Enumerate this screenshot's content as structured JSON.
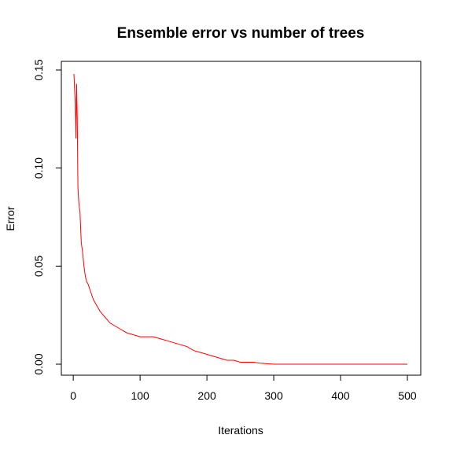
{
  "chart_data": {
    "type": "line",
    "title": "Ensemble error vs number of trees",
    "xlabel": "Iterations",
    "ylabel": "Error",
    "xlim": [
      1,
      500
    ],
    "ylim": [
      0,
      0.15
    ],
    "x_ticks": [
      0,
      100,
      200,
      300,
      400,
      500
    ],
    "y_ticks": [
      0.0,
      0.05,
      0.1,
      0.15
    ],
    "x_tick_labels": [
      "0",
      "100",
      "200",
      "300",
      "400",
      "500"
    ],
    "y_tick_labels": [
      "0.00",
      "0.05",
      "0.10",
      "0.15"
    ],
    "grid": false,
    "series": [
      {
        "color": "#ff0000",
        "x": [
          1,
          2,
          3,
          4,
          5,
          6,
          7,
          8,
          9,
          10,
          12,
          14,
          16,
          18,
          20,
          22,
          25,
          28,
          30,
          35,
          40,
          45,
          50,
          55,
          60,
          70,
          80,
          90,
          100,
          110,
          120,
          130,
          140,
          150,
          160,
          170,
          180,
          190,
          200,
          210,
          220,
          230,
          240,
          250,
          260,
          270,
          280,
          300,
          350,
          400,
          450,
          500
        ],
        "values": [
          0.148,
          0.14,
          0.133,
          0.115,
          0.143,
          0.125,
          0.09,
          0.084,
          0.08,
          0.078,
          0.062,
          0.057,
          0.05,
          0.045,
          0.042,
          0.041,
          0.038,
          0.035,
          0.033,
          0.03,
          0.027,
          0.025,
          0.023,
          0.021,
          0.02,
          0.018,
          0.016,
          0.015,
          0.014,
          0.014,
          0.014,
          0.013,
          0.012,
          0.011,
          0.01,
          0.009,
          0.007,
          0.006,
          0.005,
          0.004,
          0.003,
          0.002,
          0.002,
          0.001,
          0.001,
          0.001,
          0.0005,
          0.0,
          0.0,
          0.0,
          0.0,
          0.0
        ]
      }
    ]
  }
}
